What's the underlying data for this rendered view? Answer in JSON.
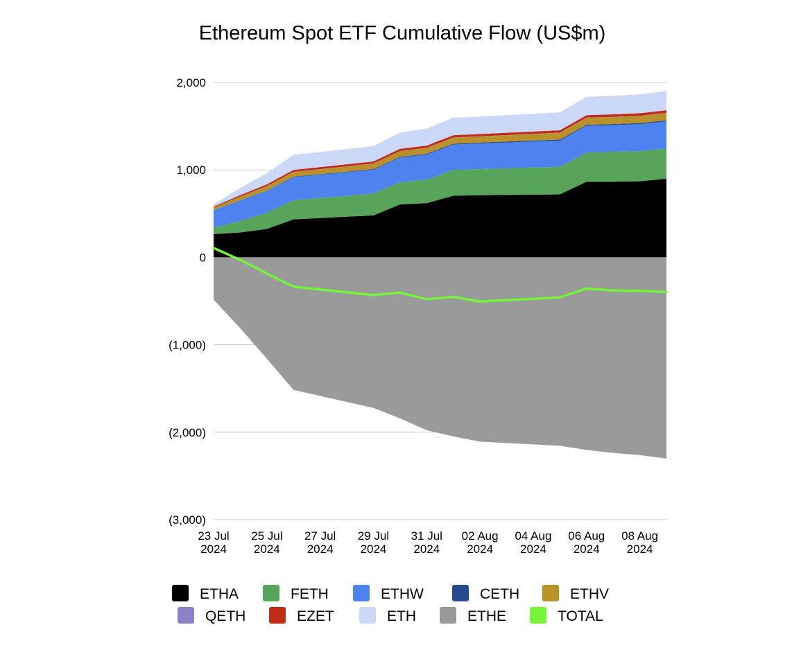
{
  "chart_data": {
    "type": "area",
    "title": "Ethereum Spot ETF Cumulative Flow (US$m)",
    "xlabel": "",
    "ylabel": "",
    "ylim": [
      -3000,
      2000
    ],
    "yticks": [
      {
        "value": 2000,
        "label": "2,000"
      },
      {
        "value": 1000,
        "label": "1,000"
      },
      {
        "value": 0,
        "label": "0"
      },
      {
        "value": -1000,
        "label": "(1,000)"
      },
      {
        "value": -2000,
        "label": "(2,000)"
      },
      {
        "value": -3000,
        "label": "(3,000)"
      }
    ],
    "x": [
      "23 Jul 2024",
      "24 Jul 2024",
      "25 Jul 2024",
      "26 Jul 2024",
      "29 Jul 2024",
      "30 Jul 2024",
      "31 Jul 2024",
      "01 Aug 2024",
      "02 Aug 2024",
      "05 Aug 2024",
      "06 Aug 2024",
      "07 Aug 2024",
      "08 Aug 2024",
      "09 Aug 2024"
    ],
    "x_positions": [
      0,
      1,
      2,
      3,
      6,
      7,
      8,
      9,
      10,
      13,
      14,
      15,
      16,
      17
    ],
    "x_tick_labels": [
      {
        "pos": 0,
        "line1": "23 Jul",
        "line2": "2024"
      },
      {
        "pos": 2,
        "line1": "25 Jul",
        "line2": "2024"
      },
      {
        "pos": 4,
        "line1": "27 Jul",
        "line2": "2024"
      },
      {
        "pos": 6,
        "line1": "29 Jul",
        "line2": "2024"
      },
      {
        "pos": 8,
        "line1": "31 Jul",
        "line2": "2024"
      },
      {
        "pos": 10,
        "line1": "02 Aug",
        "line2": "2024"
      },
      {
        "pos": 12,
        "line1": "04 Aug",
        "line2": "2024"
      },
      {
        "pos": 14,
        "line1": "06 Aug",
        "line2": "2024"
      },
      {
        "pos": 16,
        "line1": "08 Aug",
        "line2": "2024"
      }
    ],
    "series": [
      {
        "name": "ETHA",
        "color": "#000000",
        "kind": "area",
        "values": [
          266,
          284,
          325,
          434,
          480,
          605,
          620,
          705,
          710,
          720,
          865,
          865,
          870,
          900
        ]
      },
      {
        "name": "FETH",
        "color": "#57a55a",
        "kind": "area",
        "values": [
          71,
          130,
          185,
          220,
          250,
          255,
          270,
          295,
          300,
          315,
          335,
          342,
          345,
          345
        ]
      },
      {
        "name": "ETHW",
        "color": "#4e83ee",
        "kind": "area",
        "values": [
          204,
          237,
          250,
          263,
          272,
          282,
          285,
          290,
          292,
          300,
          305,
          305,
          308,
          310
        ]
      },
      {
        "name": "CETH",
        "color": "#264a8e",
        "kind": "area",
        "values": [
          0,
          2,
          3,
          6,
          7,
          8,
          10,
          10,
          11,
          12,
          12,
          12,
          12,
          12
        ]
      },
      {
        "name": "ETHV",
        "color": "#b8912a",
        "kind": "area",
        "values": [
          28,
          40,
          50,
          52,
          62,
          64,
          65,
          67,
          68,
          75,
          78,
          79,
          80,
          82
        ]
      },
      {
        "name": "QETH",
        "color": "#8e80c4",
        "kind": "area",
        "values": [
          0,
          2,
          2,
          2,
          2,
          2,
          2,
          3,
          3,
          3,
          3,
          3,
          3,
          3
        ]
      },
      {
        "name": "EZET",
        "color": "#c02d16",
        "kind": "area",
        "values": [
          11,
          16,
          20,
          23,
          24,
          25,
          26,
          27,
          27,
          28,
          28,
          29,
          30,
          30
        ]
      },
      {
        "name": "ETH",
        "color": "#cbd8f5",
        "kind": "area",
        "values": [
          23,
          84,
          128,
          172,
          175,
          185,
          195,
          200,
          200,
          205,
          210,
          212,
          215,
          220
        ]
      },
      {
        "name": "ETHE",
        "color": "#9a9a9a",
        "kind": "area",
        "values": [
          -484,
          -811,
          -1160,
          -1516,
          -1722,
          -1842,
          -1977,
          -2048,
          -2108,
          -2155,
          -2203,
          -2237,
          -2262,
          -2302
        ]
      },
      {
        "name": "TOTAL",
        "color": "#77f43a",
        "kind": "line",
        "values": [
          107,
          -29,
          -185,
          -336,
          -432,
          -404,
          -479,
          -452,
          -506,
          -458,
          -357,
          -379,
          -382,
          -397
        ]
      }
    ],
    "legend": {
      "placement": "bottom",
      "rows": [
        [
          "ETHA",
          "FETH",
          "ETHW",
          "CETH",
          "ETHV"
        ],
        [
          "QETH",
          "EZET",
          "ETH",
          "ETHE",
          "TOTAL"
        ]
      ]
    },
    "grid": true
  }
}
